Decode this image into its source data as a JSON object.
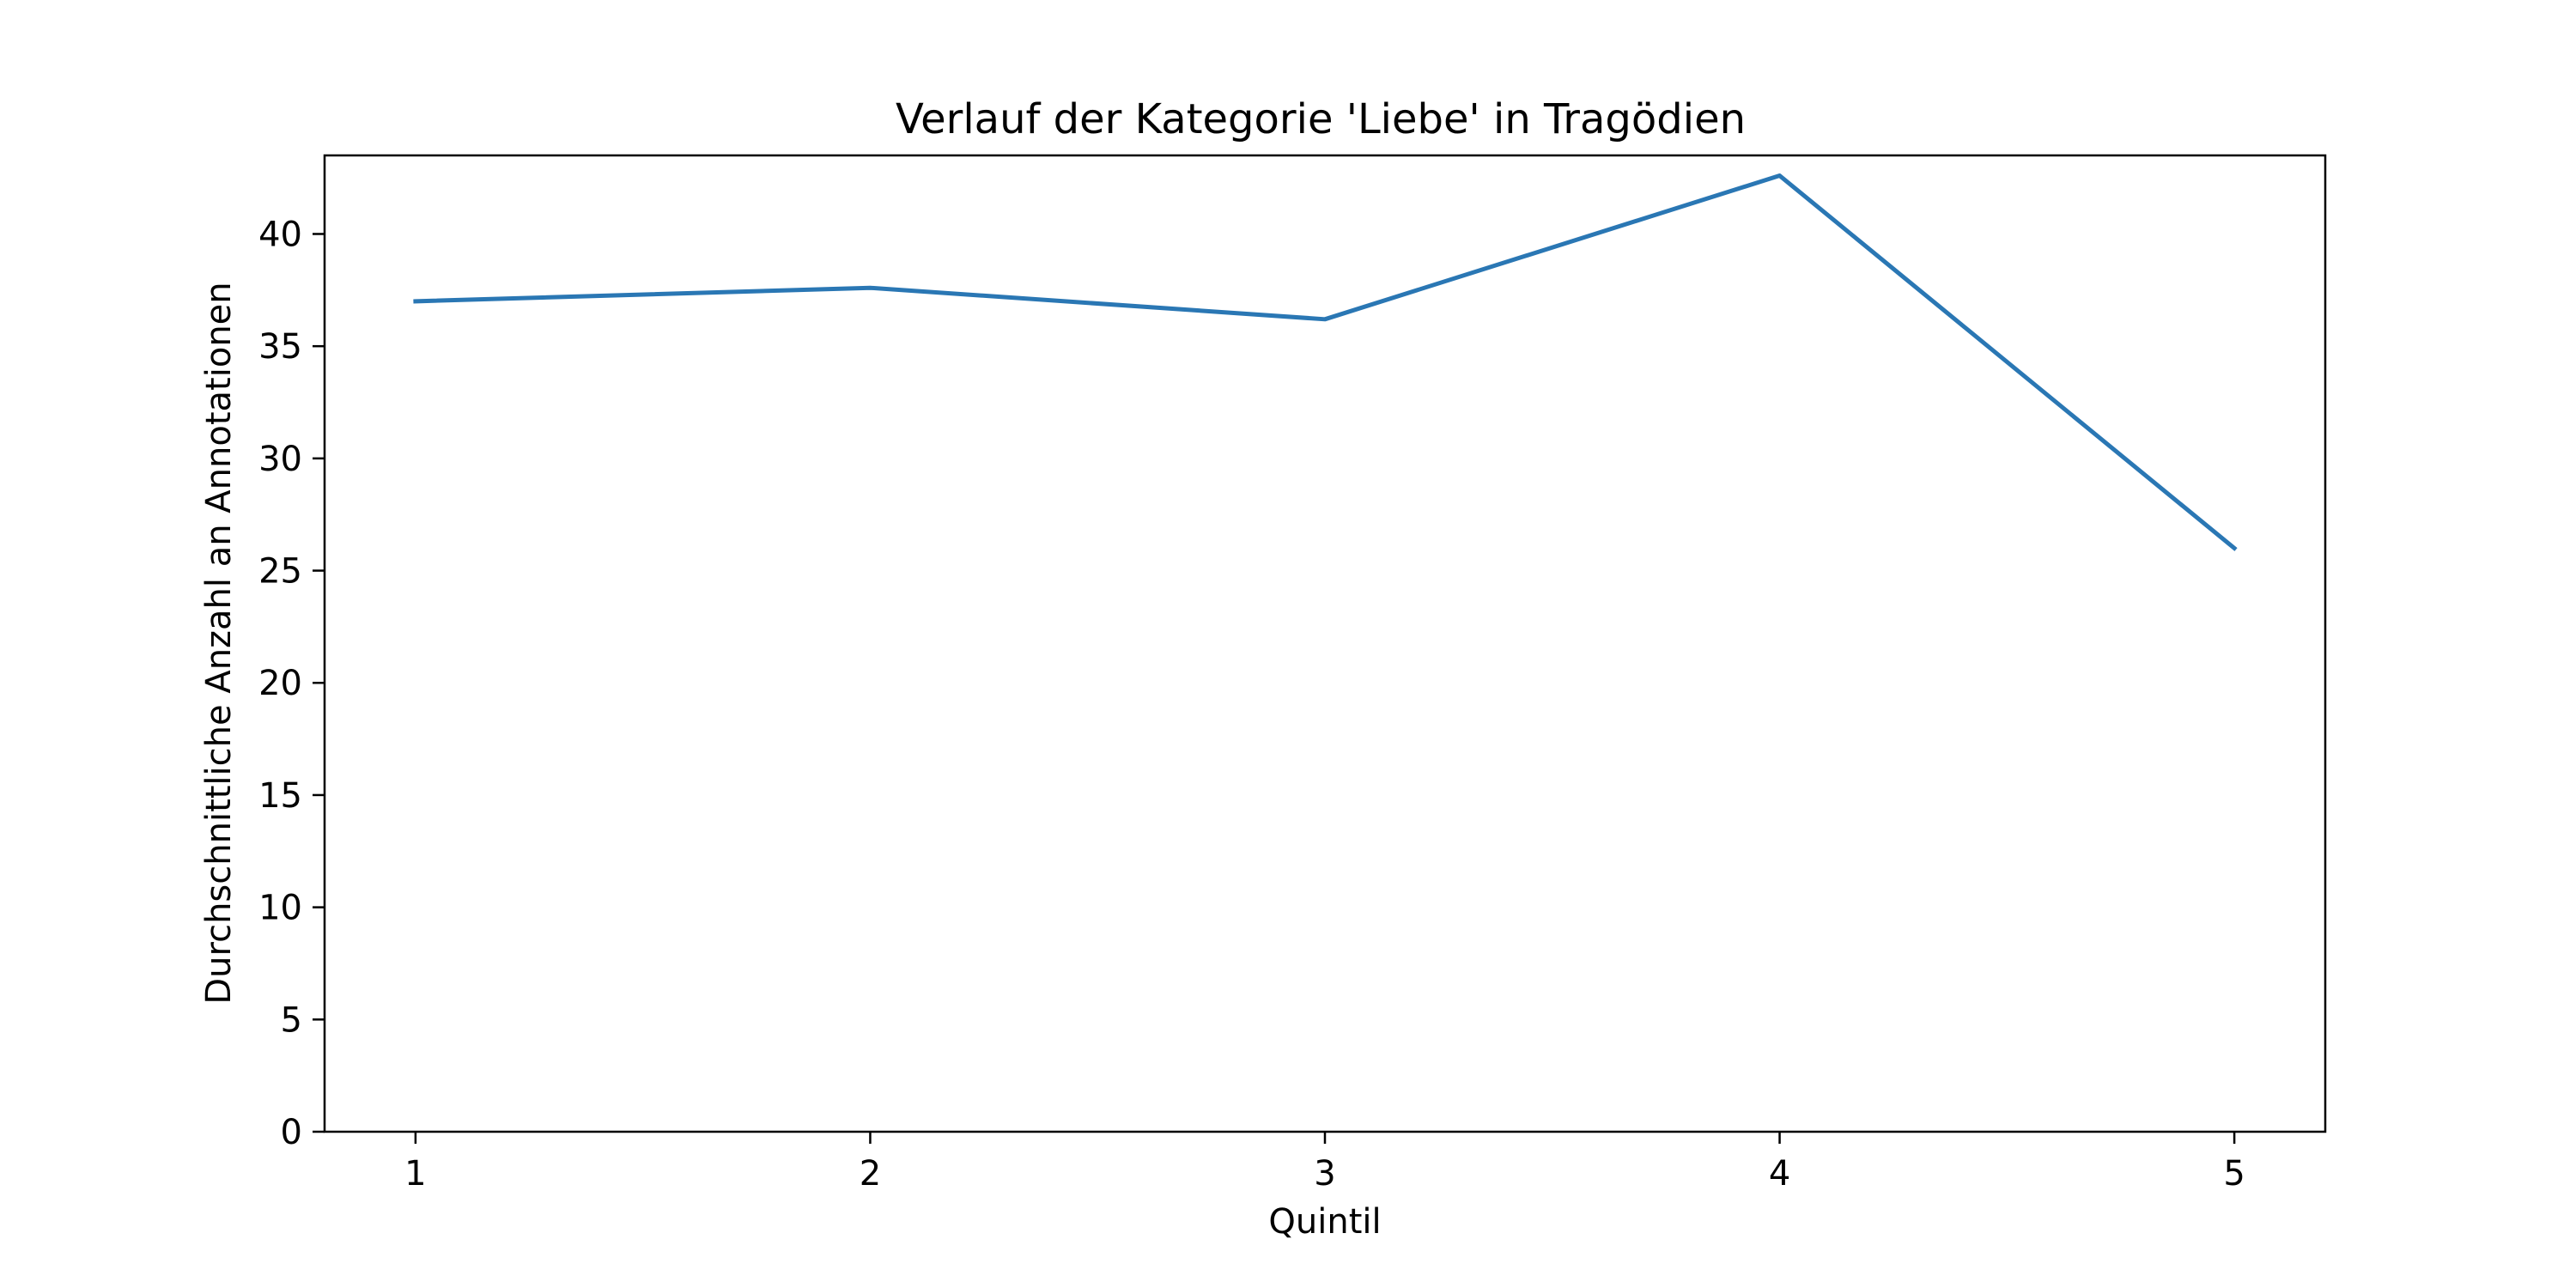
{
  "chart_data": {
    "type": "line",
    "title": "Verlauf der Kategorie 'Liebe' in Tragödien",
    "xlabel": "Quintil",
    "ylabel": "Durchschnittliche Anzahl an Annotationen",
    "x": [
      1,
      2,
      3,
      4,
      5
    ],
    "x_tick_labels": [
      "1",
      "2",
      "3",
      "4",
      "5"
    ],
    "xlim": [
      0.8,
      5.2
    ],
    "y_ticks": [
      0,
      5,
      10,
      15,
      20,
      25,
      30,
      35,
      40
    ],
    "y_tick_labels": [
      "0",
      "5",
      "10",
      "15",
      "20",
      "25",
      "30",
      "35",
      "40"
    ],
    "ylim": [
      0,
      43.5
    ],
    "grid": false,
    "legend": "none",
    "series": [
      {
        "values": [
          37.0,
          37.6,
          36.2,
          42.6,
          26.0
        ],
        "color": "#2a77b4"
      }
    ]
  }
}
